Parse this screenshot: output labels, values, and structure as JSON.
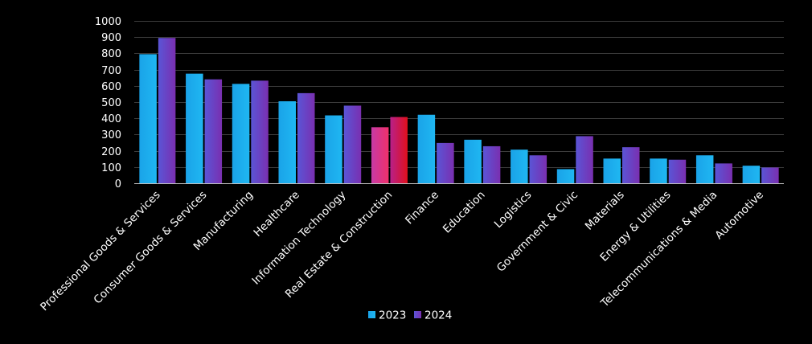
{
  "chart_data": {
    "type": "bar",
    "title": "",
    "xlabel": "",
    "ylabel": "",
    "ylim": [
      0,
      1000
    ],
    "yticks": [
      0,
      100,
      200,
      300,
      400,
      500,
      600,
      700,
      800,
      900,
      1000
    ],
    "grid": true,
    "legend_position": "bottom",
    "categories": [
      "Professional Goods & Services",
      "Consumer Goods & Services",
      "Manufacturing",
      "Healthcare",
      "Information Technology",
      "Real Estate & Construction",
      "Finance",
      "Education",
      "Logistics",
      "Government & Civic",
      "Materials",
      "Energy & Utilities",
      "Telecommunications & Media",
      "Automotive"
    ],
    "series": [
      {
        "name": "2023",
        "color": "#1aa3e8",
        "values": [
          795,
          675,
          612,
          505,
          418,
          345,
          422,
          268,
          207,
          87,
          152,
          152,
          172,
          108
        ]
      },
      {
        "name": "2024",
        "color": "#7030a0",
        "values": [
          895,
          640,
          632,
          555,
          478,
          408,
          248,
          228,
          172,
          290,
          222,
          145,
          122,
          97
        ]
      }
    ],
    "highlight_category": "Real Estate & Construction",
    "highlight_colors": {
      "2023": "#e8347c",
      "2024": "#d81030"
    }
  }
}
